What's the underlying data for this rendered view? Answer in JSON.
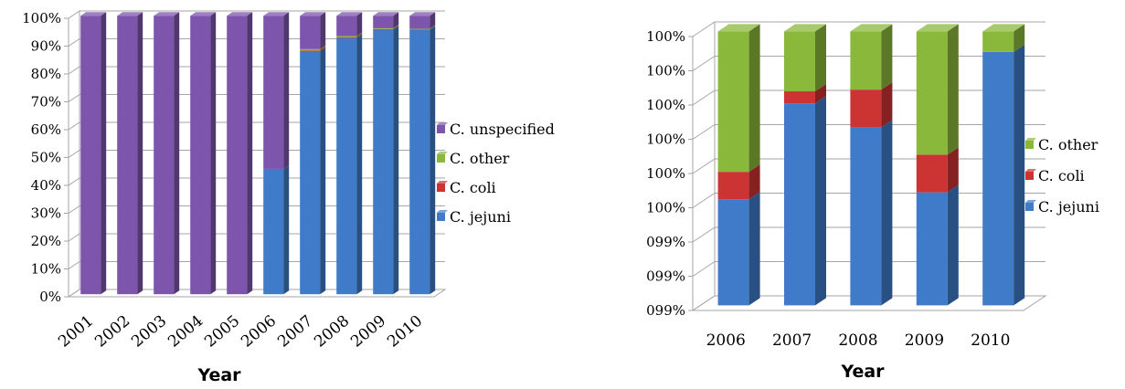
{
  "colors": {
    "C. jejuni": "#3f7bc8",
    "C. coli": "#cc3333",
    "C. other": "#8ab83a",
    "C. unspecified": "#7d55ad",
    "grid": "#a6a6a6"
  },
  "chart_data": [
    {
      "type": "bar",
      "stacked": true,
      "title": "",
      "xlabel": "Year",
      "ylabel": "",
      "ylim": [
        0,
        100
      ],
      "y_ticks": [
        "0%",
        "10%",
        "20%",
        "30%",
        "40%",
        "50%",
        "60%",
        "70%",
        "80%",
        "90%",
        "100%"
      ],
      "categories": [
        "2001",
        "2002",
        "2003",
        "2004",
        "2005",
        "2006",
        "2007",
        "2008",
        "2009",
        "2010"
      ],
      "series": [
        {
          "name": "C. jejuni",
          "values": [
            0,
            0,
            0,
            0,
            0,
            45,
            87,
            92,
            95,
            95
          ]
        },
        {
          "name": "C. coli",
          "values": [
            0,
            0,
            0,
            0,
            0,
            0,
            0.5,
            0.3,
            0.2,
            0.1
          ]
        },
        {
          "name": "C. other",
          "values": [
            0,
            0,
            0,
            0,
            0,
            0,
            0.5,
            0.4,
            0.3,
            0.2
          ]
        },
        {
          "name": "C. unspecified",
          "values": [
            100,
            100,
            100,
            100,
            100,
            55,
            12,
            7.3,
            4.5,
            4.7
          ]
        }
      ],
      "legend": [
        "C. unspecified",
        "C. other",
        "C. coli",
        "C. jejuni"
      ],
      "legend_position": "right",
      "grid": true
    },
    {
      "type": "bar",
      "stacked": true,
      "title": "",
      "xlabel": "Year",
      "ylabel": "",
      "ylim": [
        0,
        8
      ],
      "y_ticks": [
        "099%",
        "099%",
        "099%",
        "100%",
        "100%",
        "100%",
        "100%",
        "100%",
        "100%"
      ],
      "categories": [
        "2006",
        "2007",
        "2008",
        "2009",
        "2010"
      ],
      "series": [
        {
          "name": "C. jejuni",
          "values": [
            3.1,
            5.9,
            5.2,
            3.3,
            7.4
          ]
        },
        {
          "name": "C. coli",
          "values": [
            0.8,
            0.35,
            1.1,
            1.1,
            0
          ]
        },
        {
          "name": "C. other",
          "values": [
            4.1,
            1.75,
            1.7,
            3.6,
            0.6
          ]
        }
      ],
      "legend": [
        "C. other",
        "C. coli",
        "C. jejuni"
      ],
      "legend_position": "right",
      "grid": true
    }
  ]
}
